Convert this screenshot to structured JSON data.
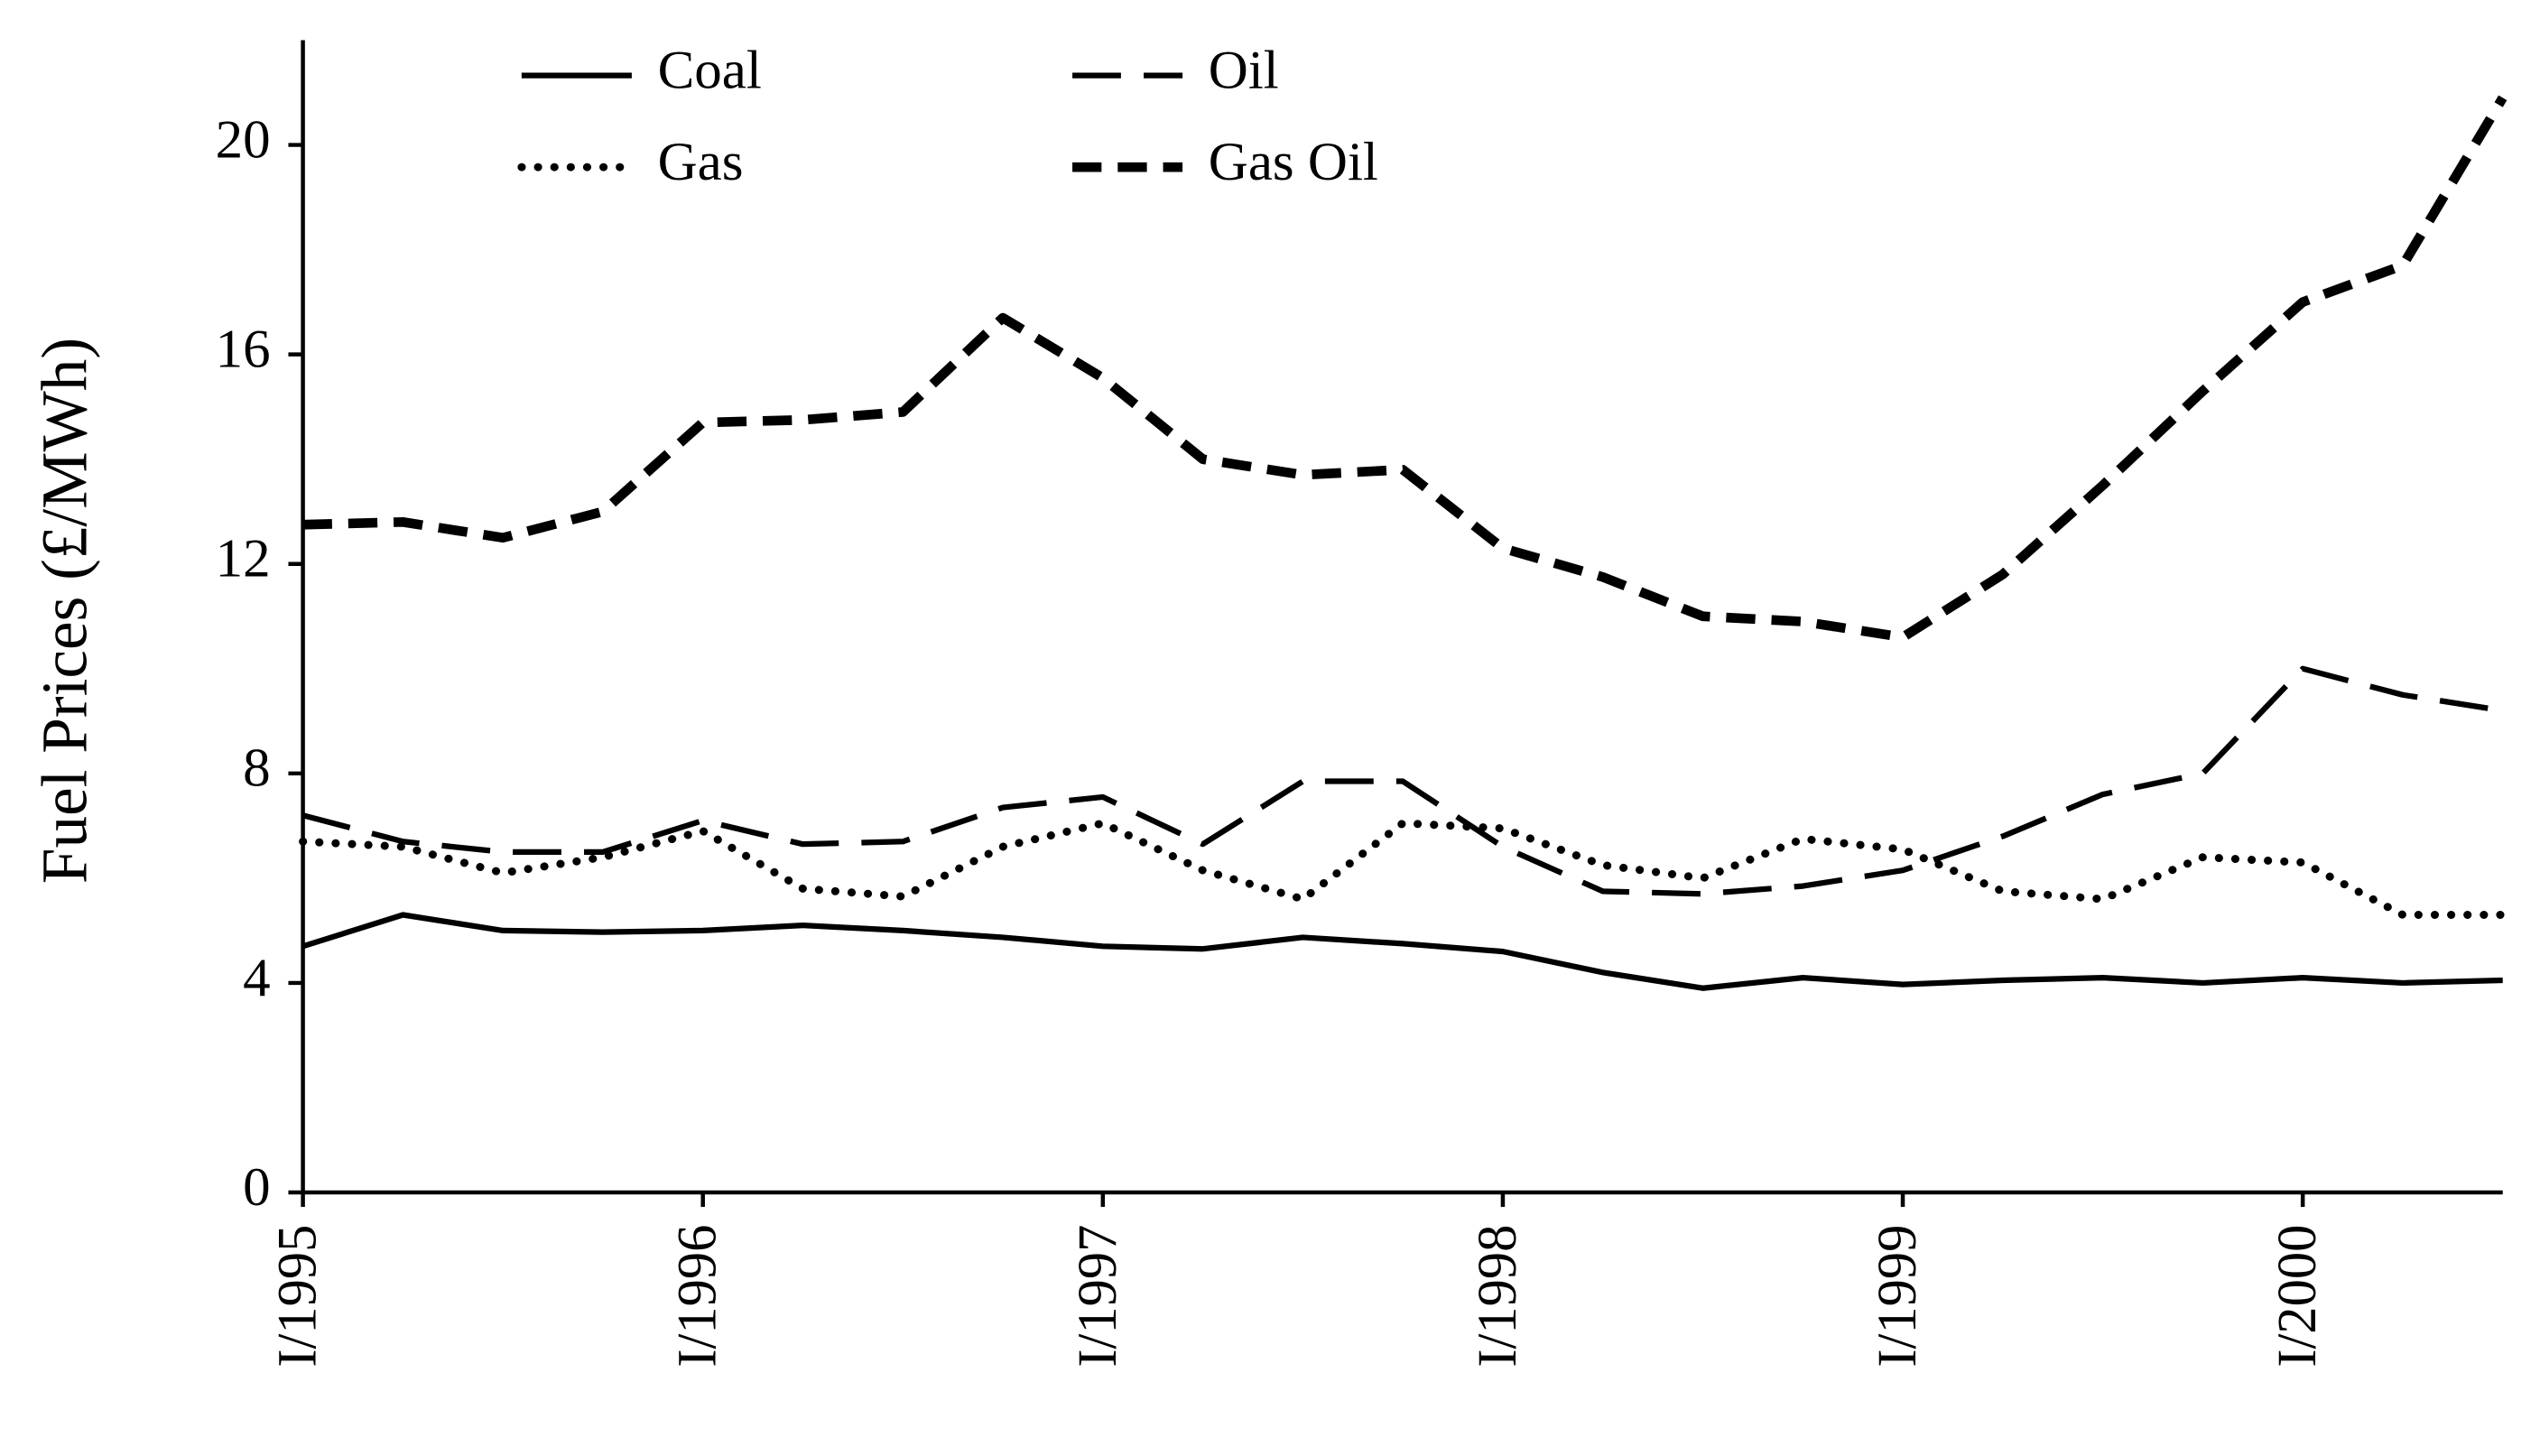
{
  "chart_data": {
    "type": "line",
    "y_label": "Fuel Prices (£/MWh)",
    "categories": [
      "I/1995",
      null,
      null,
      null,
      "I/1996",
      null,
      null,
      null,
      "I/1997",
      null,
      null,
      null,
      "I/1998",
      null,
      null,
      null,
      "I/1999",
      null,
      null,
      null,
      "I/2000",
      null,
      null
    ],
    "series": [
      {
        "name": "Coal",
        "color": "#000000",
        "dash": "solid",
        "values": [
          4.7,
          5.3,
          5.0,
          4.97,
          5.0,
          5.1,
          5.0,
          4.87,
          4.7,
          4.65,
          4.87,
          4.75,
          4.6,
          4.2,
          3.9,
          4.1,
          3.97,
          4.05,
          4.1,
          4.0,
          4.1,
          4.0,
          4.05
        ]
      },
      {
        "name": "Oil",
        "color": "#000000",
        "dash": "long-dash",
        "values": [
          7.2,
          6.7,
          6.5,
          6.5,
          7.1,
          6.65,
          6.7,
          7.35,
          7.55,
          6.65,
          7.85,
          7.85,
          6.6,
          5.75,
          5.7,
          5.85,
          6.15,
          6.8,
          7.6,
          8.0,
          10.0,
          9.5,
          9.2
        ]
      },
      {
        "name": "Gas",
        "color": "#000000",
        "dash": "dotted",
        "values": [
          6.7,
          6.6,
          6.1,
          6.4,
          6.9,
          5.8,
          5.65,
          6.6,
          7.05,
          6.15,
          5.6,
          7.05,
          6.95,
          6.25,
          6.0,
          6.75,
          6.55,
          5.75,
          5.6,
          6.4,
          6.3,
          5.3,
          5.3
        ]
      },
      {
        "name": "Gas Oil",
        "color": "#000000",
        "dash": "thick-dash",
        "values": [
          12.75,
          12.8,
          12.5,
          13.0,
          14.7,
          14.75,
          14.9,
          16.7,
          15.55,
          14.0,
          13.7,
          13.8,
          12.3,
          11.75,
          11.0,
          10.9,
          10.6,
          11.8,
          13.5,
          15.3,
          17.0,
          17.7,
          20.9
        ]
      }
    ],
    "ylim": [
      0,
      22
    ],
    "yticks": [
      0,
      4,
      8,
      12,
      16,
      20
    ],
    "legend": "top",
    "grid": false
  }
}
